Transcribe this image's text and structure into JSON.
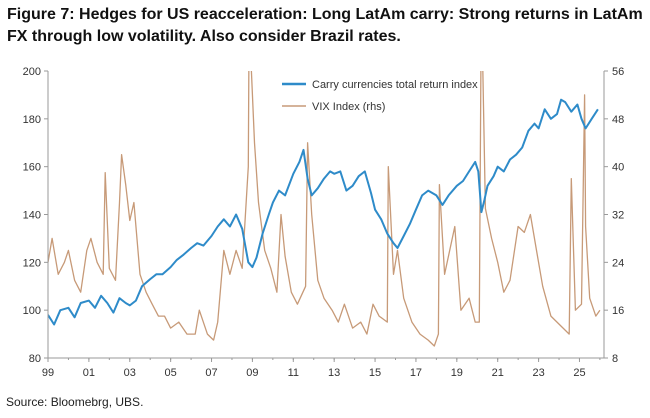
{
  "title": "Figure 7: Hedges for US reacceleration: Long LatAm carry: Strong returns in LatAm FX through low volatility. Also consider Brazil rates.",
  "source": "Source: Bloomebrg, UBS.",
  "colors": {
    "carry": "#2E8BC9",
    "vix": "#C79A78",
    "axis": "#9a9a9a",
    "text": "#333333"
  },
  "chart_data": {
    "type": "line",
    "xlabel": "",
    "ylabel": "",
    "y2label": "",
    "grid": false,
    "legend_position": "top-center",
    "xlim": [
      1999,
      2026.2
    ],
    "ylim": [
      80,
      200
    ],
    "y2lim": [
      8,
      56
    ],
    "x_ticks": [
      1999,
      2001,
      2003,
      2005,
      2007,
      2009,
      2011,
      2013,
      2015,
      2017,
      2019,
      2021,
      2023,
      2025
    ],
    "x_tick_labels": [
      "99",
      "01",
      "03",
      "05",
      "07",
      "09",
      "11",
      "13",
      "15",
      "17",
      "19",
      "21",
      "23",
      "25"
    ],
    "y_ticks": [
      80,
      100,
      120,
      140,
      160,
      180,
      200
    ],
    "y2_ticks": [
      8,
      16,
      24,
      32,
      40,
      48,
      56
    ],
    "series": [
      {
        "name": "Carry currencies total return index",
        "axis": "left",
        "color": "#2E8BC9",
        "x": [
          1999.0,
          1999.3,
          1999.6,
          2000.0,
          2000.3,
          2000.6,
          2001.0,
          2001.3,
          2001.6,
          2001.9,
          2002.2,
          2002.5,
          2002.8,
          2003.0,
          2003.3,
          2003.6,
          2004.0,
          2004.3,
          2004.6,
          2005.0,
          2005.3,
          2005.6,
          2006.0,
          2006.3,
          2006.6,
          2007.0,
          2007.3,
          2007.6,
          2007.9,
          2008.2,
          2008.5,
          2008.8,
          2009.0,
          2009.2,
          2009.5,
          2009.8,
          2010.0,
          2010.3,
          2010.6,
          2011.0,
          2011.3,
          2011.5,
          2011.7,
          2011.9,
          2012.2,
          2012.5,
          2012.8,
          2013.0,
          2013.3,
          2013.6,
          2013.9,
          2014.2,
          2014.5,
          2014.8,
          2015.0,
          2015.3,
          2015.6,
          2015.9,
          2016.1,
          2016.4,
          2016.7,
          2017.0,
          2017.3,
          2017.6,
          2018.0,
          2018.3,
          2018.6,
          2019.0,
          2019.3,
          2019.6,
          2019.9,
          2020.05,
          2020.2,
          2020.35,
          2020.5,
          2020.8,
          2021.0,
          2021.3,
          2021.6,
          2021.9,
          2022.2,
          2022.5,
          2022.8,
          2023.0,
          2023.3,
          2023.6,
          2023.9,
          2024.1,
          2024.3,
          2024.6,
          2024.9,
          2025.1,
          2025.3,
          2025.6,
          2025.9
        ],
        "values": [
          98,
          94,
          100,
          101,
          97,
          103,
          104,
          101,
          106,
          103,
          99,
          105,
          103,
          102,
          104,
          110,
          113,
          115,
          115,
          118,
          121,
          123,
          126,
          128,
          127,
          131,
          135,
          138,
          135,
          140,
          134,
          120,
          118,
          122,
          132,
          140,
          145,
          150,
          148,
          157,
          162,
          167,
          155,
          148,
          151,
          155,
          158,
          157,
          158,
          150,
          152,
          156,
          158,
          149,
          142,
          138,
          132,
          128,
          126,
          131,
          136,
          142,
          148,
          150,
          148,
          144,
          148,
          152,
          154,
          158,
          162,
          158,
          141,
          146,
          152,
          156,
          160,
          158,
          163,
          165,
          168,
          175,
          178,
          176,
          184,
          180,
          182,
          188,
          187,
          183,
          186,
          180,
          176,
          180,
          184
        ]
      },
      {
        "name": "VIX Index (rhs)",
        "axis": "right",
        "color": "#C79A78",
        "x": [
          1999.0,
          1999.2,
          1999.5,
          1999.8,
          2000.0,
          2000.3,
          2000.6,
          2000.9,
          2001.1,
          2001.4,
          2001.7,
          2001.8,
          2002.0,
          2002.3,
          2002.5,
          2002.6,
          2002.8,
          2003.0,
          2003.2,
          2003.5,
          2003.8,
          2004.1,
          2004.4,
          2004.7,
          2005.0,
          2005.4,
          2005.8,
          2006.2,
          2006.4,
          2006.8,
          2007.1,
          2007.3,
          2007.6,
          2007.9,
          2008.2,
          2008.5,
          2008.8,
          2008.85,
          2008.95,
          2009.1,
          2009.3,
          2009.6,
          2009.9,
          2010.2,
          2010.4,
          2010.6,
          2010.9,
          2011.2,
          2011.6,
          2011.7,
          2011.9,
          2012.2,
          2012.5,
          2012.9,
          2013.2,
          2013.5,
          2013.9,
          2014.3,
          2014.6,
          2014.9,
          2015.2,
          2015.6,
          2015.65,
          2015.9,
          2016.1,
          2016.4,
          2016.8,
          2017.2,
          2017.6,
          2017.9,
          2018.1,
          2018.15,
          2018.4,
          2018.9,
          2019.2,
          2019.6,
          2019.9,
          2020.1,
          2020.2,
          2020.25,
          2020.4,
          2020.7,
          2021.0,
          2021.3,
          2021.6,
          2022.0,
          2022.3,
          2022.6,
          2022.9,
          2023.2,
          2023.6,
          2023.9,
          2024.2,
          2024.5,
          2024.6,
          2024.8,
          2025.1,
          2025.25,
          2025.3,
          2025.5,
          2025.8,
          2026.0
        ],
        "values": [
          24,
          28,
          22,
          24,
          26,
          21,
          19,
          26,
          28,
          24,
          22,
          39,
          23,
          21,
          34,
          42,
          37,
          31,
          34,
          22,
          19,
          17,
          15,
          15,
          13,
          14,
          12,
          12,
          16,
          12,
          11,
          14,
          26,
          22,
          26,
          23,
          40,
          70,
          56,
          44,
          34,
          26,
          23,
          19,
          32,
          25,
          19,
          17,
          20,
          44,
          32,
          21,
          18,
          16,
          14,
          17,
          13,
          14,
          12,
          17,
          15,
          14,
          40,
          22,
          26,
          18,
          14,
          12,
          11,
          10,
          12,
          37,
          22,
          30,
          16,
          18,
          14,
          14,
          70,
          60,
          33,
          28,
          24,
          19,
          21,
          30,
          29,
          32,
          26,
          20,
          15,
          14,
          13,
          12,
          38,
          16,
          17,
          52,
          30,
          18,
          15,
          16
        ]
      }
    ]
  }
}
